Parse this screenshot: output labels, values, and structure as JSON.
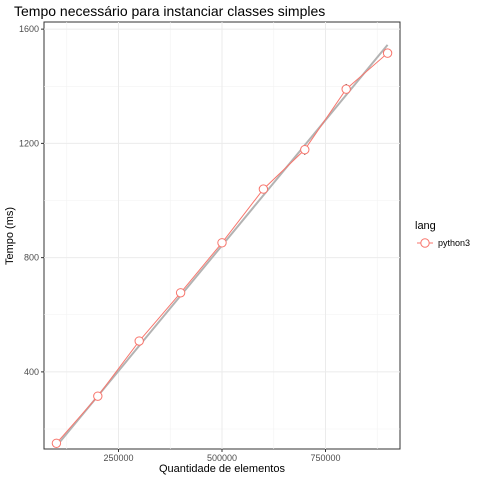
{
  "chart_data": {
    "type": "line",
    "title": "Tempo necessário para instanciar classes simples",
    "xlabel": "Quantidade de elementos",
    "ylabel": "Tempo (ms)",
    "xlim": [
      70000,
      930000
    ],
    "ylim": [
      130,
      1625
    ],
    "x_ticks": [
      250000,
      500000,
      750000
    ],
    "x_tick_labels": [
      "250000",
      "500000",
      "750000"
    ],
    "y_ticks": [
      400,
      800,
      1200,
      1600
    ],
    "y_tick_labels": [
      "400",
      "800",
      "1200",
      "1600"
    ],
    "grid": true,
    "legend": {
      "title": "lang",
      "position": "right"
    },
    "series": [
      {
        "name": "python3",
        "color": "#f8766d",
        "x": [
          100000,
          200000,
          300000,
          400000,
          500000,
          600000,
          700000,
          800000,
          900000
        ],
        "y": [
          150,
          315,
          508,
          677,
          852,
          1040,
          1178,
          1390,
          1516
        ],
        "error_low": [
          148,
          312,
          505,
          675,
          849,
          1037,
          1160,
          1377,
          1510
        ],
        "error_high": [
          152,
          318,
          511,
          680,
          855,
          1043,
          1185,
          1408,
          1522
        ]
      }
    ],
    "fit_line": {
      "color": "#b3b3b3",
      "x": [
        100000,
        900000
      ],
      "y": [
        140,
        1545
      ]
    }
  }
}
